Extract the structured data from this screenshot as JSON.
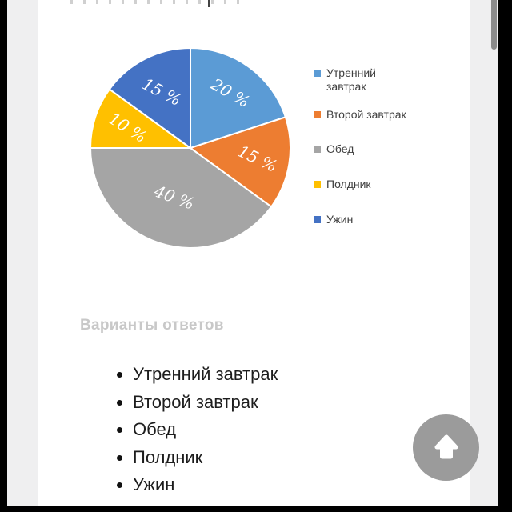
{
  "chart_data": {
    "type": "pie",
    "categories": [
      "Утренний завтрак",
      "Второй завтрак",
      "Обед",
      "Полдник",
      "Ужин"
    ],
    "values": [
      20,
      15,
      40,
      10,
      15
    ],
    "labels": [
      "20 %",
      "15 %",
      "40 %",
      "10 %",
      "15 %"
    ],
    "colors": [
      "#5B9BD5",
      "#ED7D31",
      "#A5A5A5",
      "#FFC000",
      "#4472C4"
    ],
    "start_angle_deg": 0,
    "direction": "clockwise",
    "legend_position": "right",
    "label_color": "#ffffff",
    "label_radius_frac": [
      0.68,
      0.68,
      0.52,
      0.66,
      0.63
    ],
    "label_rotation_deg": [
      30,
      25,
      20,
      32,
      27
    ]
  },
  "answers": {
    "heading": "Варианты ответов",
    "items": [
      "Утренний завтрак",
      "Второй завтрак",
      "Обед",
      "Полдник",
      "Ужин"
    ]
  },
  "icons": {
    "scroll_top": "arrow-up"
  },
  "colors": {
    "screen_bg": "#000000",
    "panel_bg": "#efeff0",
    "card_bg": "#ffffff",
    "legend_text": "#404040",
    "muted_heading": "#c8c8c8",
    "list_text": "#1d1d1d",
    "scroll_button_bg": "#9b9b9b",
    "scrollbar": "#8b8b8b"
  }
}
